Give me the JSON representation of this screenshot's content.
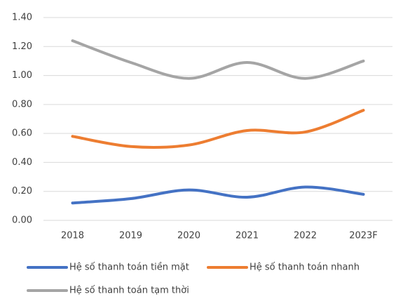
{
  "chart_data": {
    "type": "line",
    "categories": [
      "2018",
      "2019",
      "2020",
      "2021",
      "2022",
      "2023F"
    ],
    "series": [
      {
        "name": "Hệ số thanh toán tiền mặt",
        "color": "#4472c4",
        "values": [
          0.12,
          0.15,
          0.21,
          0.16,
          0.23,
          0.18
        ]
      },
      {
        "name": "Hệ số thanh toán nhanh",
        "color": "#ed7d31",
        "values": [
          0.58,
          0.51,
          0.52,
          0.62,
          0.61,
          0.76
        ]
      },
      {
        "name": "Hệ số thanh toán tạm thời",
        "color": "#a5a5a5",
        "values": [
          1.24,
          1.09,
          0.98,
          1.09,
          0.98,
          1.1
        ]
      }
    ],
    "ylim": [
      0,
      1.4
    ],
    "yticks": [
      {
        "value": 0,
        "label": "0.00"
      },
      {
        "value": 0.2,
        "label": "0.20"
      },
      {
        "value": 0.4,
        "label": "0.40"
      },
      {
        "value": 0.6,
        "label": "0.60"
      },
      {
        "value": 0.8,
        "label": "0.80"
      },
      {
        "value": 1.0,
        "label": "1.00"
      },
      {
        "value": 1.2,
        "label": "1.20"
      },
      {
        "value": 1.4,
        "label": "1.40"
      }
    ],
    "grid": true,
    "smooth": true,
    "legend": "bottom"
  }
}
